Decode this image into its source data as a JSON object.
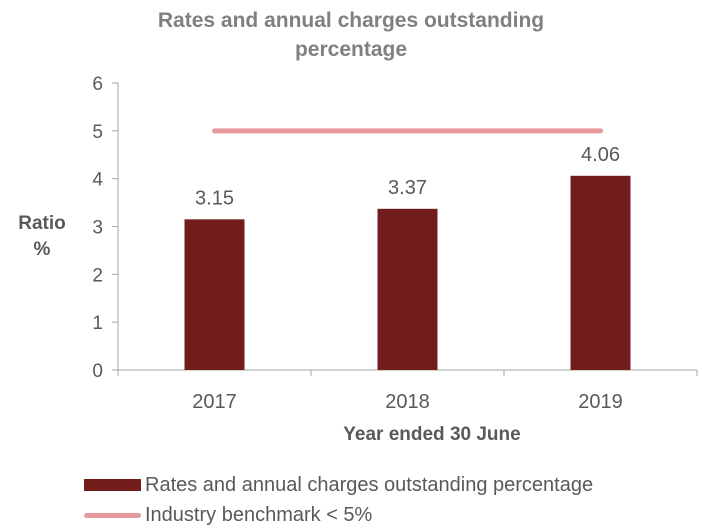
{
  "chart_data": {
    "type": "bar",
    "title_line1": "Rates and annual charges outstanding",
    "title_line2": "percentage",
    "xlabel": "Year ended 30 June",
    "ylabel_line1": "Ratio",
    "ylabel_line2": "%",
    "categories": [
      "2017",
      "2018",
      "2019"
    ],
    "series": [
      {
        "name": "Rates and annual charges outstanding percentage",
        "values": [
          3.15,
          3.37,
          4.06
        ],
        "labels": [
          "3.15",
          "3.37",
          "4.06"
        ],
        "color": "#731c1c"
      }
    ],
    "benchmark": {
      "name": "Industry benchmark < 5%",
      "value": 5,
      "color": "#e6999a"
    },
    "ylim": [
      0,
      6
    ],
    "yticks": [
      "0",
      "1",
      "2",
      "3",
      "4",
      "5",
      "6"
    ],
    "grid": false,
    "legend_position": "bottom"
  }
}
